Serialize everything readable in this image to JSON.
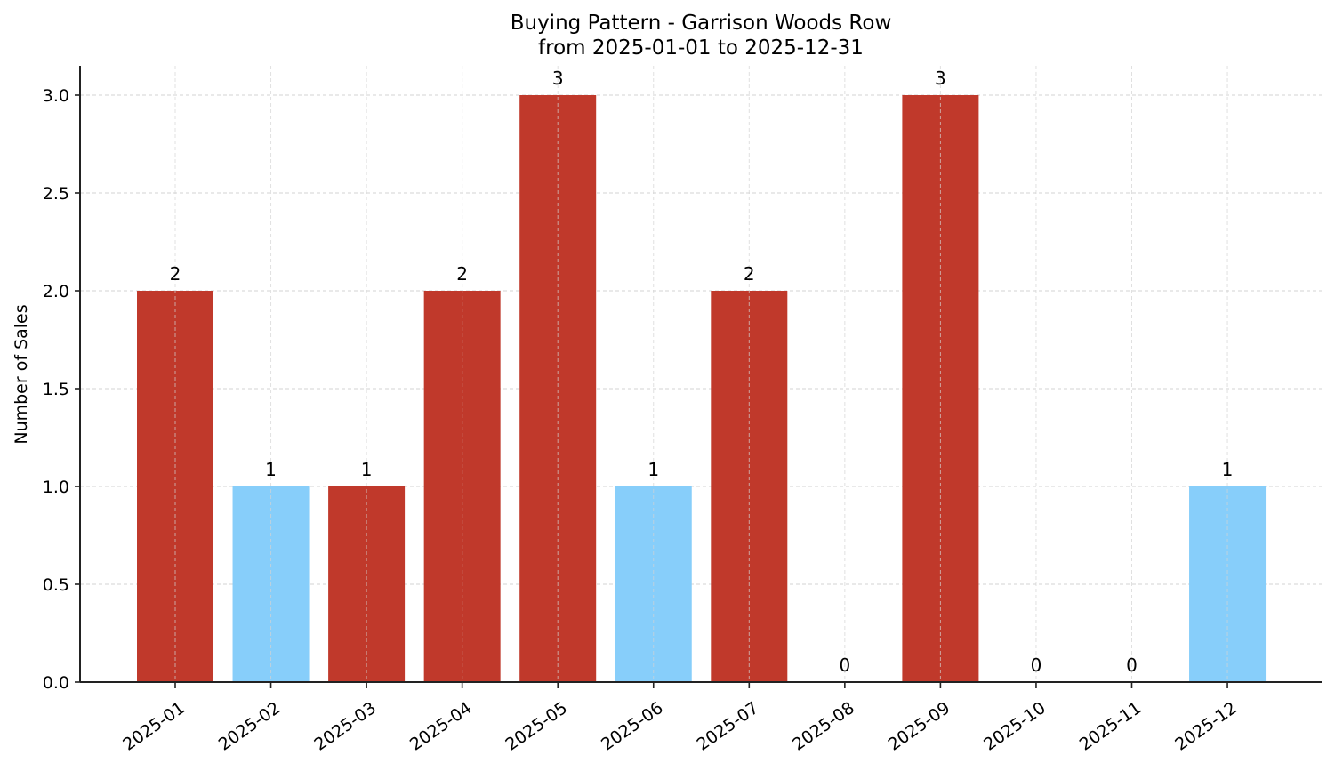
{
  "chart_data": {
    "type": "bar",
    "title": "Buying Pattern - Garrison Woods Row",
    "subtitle": "from 2025-01-01 to 2025-12-31",
    "xlabel": "",
    "ylabel": "Number of Sales",
    "ylim": [
      0,
      3.15
    ],
    "yticks": [
      "0.0",
      "0.5",
      "1.0",
      "1.5",
      "2.0",
      "2.5",
      "3.0"
    ],
    "grid": true,
    "legend": null,
    "categories": [
      "2025-01",
      "2025-02",
      "2025-03",
      "2025-04",
      "2025-05",
      "2025-06",
      "2025-07",
      "2025-08",
      "2025-09",
      "2025-10",
      "2025-11",
      "2025-12"
    ],
    "values": [
      2,
      1,
      1,
      2,
      3,
      1,
      2,
      0,
      3,
      0,
      0,
      1
    ],
    "bar_colors": [
      "#c0392b",
      "#87cefa",
      "#c0392b",
      "#c0392b",
      "#c0392b",
      "#87cefa",
      "#c0392b",
      "#c0392b",
      "#c0392b",
      "#c0392b",
      "#c0392b",
      "#87cefa"
    ],
    "data_labels": [
      "2",
      "1",
      "1",
      "2",
      "3",
      "1",
      "2",
      "0",
      "3",
      "0",
      "0",
      "1"
    ]
  }
}
